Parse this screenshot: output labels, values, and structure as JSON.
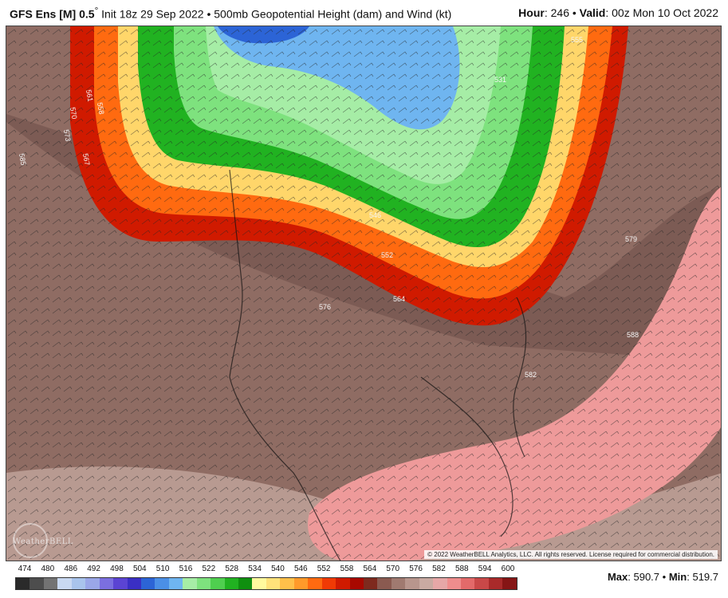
{
  "header": {
    "model": "GFS Ens [M] 0.5",
    "degree": "°",
    "init": "Init 18z 29 Sep 2022",
    "separator": "•",
    "field": "500mb Geopotential Height (dam) and Wind (kt)",
    "hour_label": "Hour",
    "hour_value": ": 246",
    "valid_label": "Valid",
    "valid_value": ": 00z Mon 10 Oct 2022"
  },
  "map": {
    "contour_labels": [
      "561",
      "558",
      "570",
      "573",
      "567",
      "585",
      "546",
      "552",
      "564",
      "576",
      "579",
      "582",
      "588",
      "555",
      "531"
    ],
    "copyright": "© 2022 WeatherBELL Analytics, LLC. All rights reserved. License required for commercial distribution.",
    "logo_text": "WeatherBELL"
  },
  "legend": {
    "ticks": [
      "474",
      "480",
      "486",
      "492",
      "498",
      "504",
      "510",
      "516",
      "522",
      "528",
      "534",
      "540",
      "546",
      "552",
      "558",
      "564",
      "570",
      "576",
      "582",
      "588",
      "594",
      "600"
    ],
    "colors": [
      "#2a2a2a",
      "#4d4d4d",
      "#737373",
      "#c9d9f2",
      "#a9c4ec",
      "#9aa7e8",
      "#7b6fe0",
      "#5b44d3",
      "#3a2fc4",
      "#2c64d6",
      "#4b8fe6",
      "#6fb5f0",
      "#a6eda6",
      "#7ee27e",
      "#4fcf4f",
      "#21b221",
      "#0f8f0f",
      "#fffa9e",
      "#ffe27a",
      "#ffc04a",
      "#ff9a2a",
      "#ff6a10",
      "#f03a05",
      "#d01a00",
      "#a80800",
      "#7e2a1e",
      "#8a5a50",
      "#a07a70",
      "#b8968d",
      "#c9aaa2",
      "#e6a7a7",
      "#ef8d8d",
      "#e36a6a",
      "#c94848",
      "#a92a2a",
      "#851515"
    ]
  },
  "stats": {
    "max_label": "Max",
    "max_value": ": 590.7",
    "sep": "•",
    "min_label": "Min",
    "min_value": ": 519.7"
  }
}
